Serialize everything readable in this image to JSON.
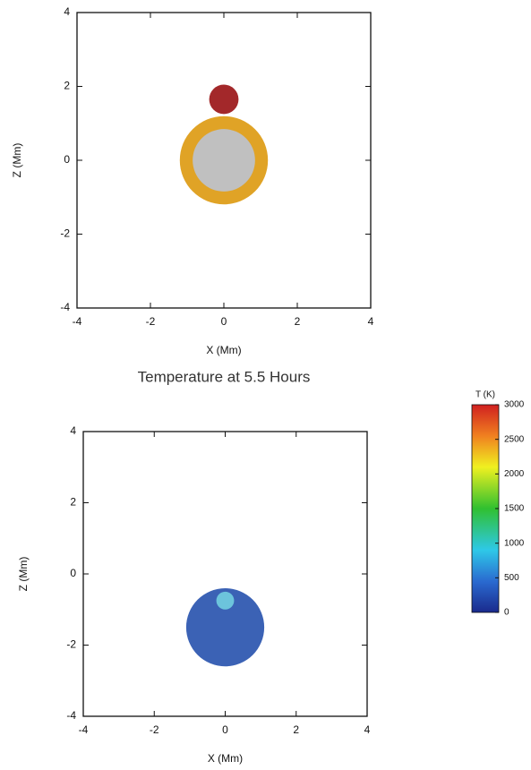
{
  "chart_data": [
    {
      "type": "circles",
      "xlabel": "X (Mm)",
      "ylabel": "Z (Mm)",
      "xlim": [
        -4,
        4
      ],
      "ylim": [
        -4,
        4
      ],
      "xticks": [
        -4,
        -2,
        0,
        2,
        4
      ],
      "yticks": [
        -4,
        -2,
        0,
        2,
        4
      ],
      "circles": [
        {
          "x": 0,
          "z": 0,
          "r": 1.2,
          "color": "#e0a326"
        },
        {
          "x": 0,
          "z": 0,
          "r": 0.85,
          "color": "#c0c0c0"
        },
        {
          "x": 0,
          "z": 1.65,
          "r": 0.4,
          "color": "#a3282a"
        }
      ]
    },
    {
      "type": "circles",
      "title": "Temperature at 5.5 Hours",
      "xlabel": "X (Mm)",
      "ylabel": "Z (Mm)",
      "xlim": [
        -4,
        4
      ],
      "ylim": [
        -4,
        4
      ],
      "xticks": [
        -4,
        -2,
        0,
        2,
        4
      ],
      "yticks": [
        -4,
        -2,
        0,
        2,
        4
      ],
      "circles": [
        {
          "x": 0,
          "z": -1.5,
          "r": 1.1,
          "color": "#3b62b5"
        },
        {
          "x": 0,
          "z": -0.75,
          "r": 0.25,
          "color": "#6cc4dc"
        }
      ],
      "colorbar": {
        "label": "T (K)",
        "lim": [
          0,
          3000
        ],
        "ticks": [
          0,
          500,
          1000,
          1500,
          2000,
          2500,
          3000
        ]
      }
    }
  ]
}
